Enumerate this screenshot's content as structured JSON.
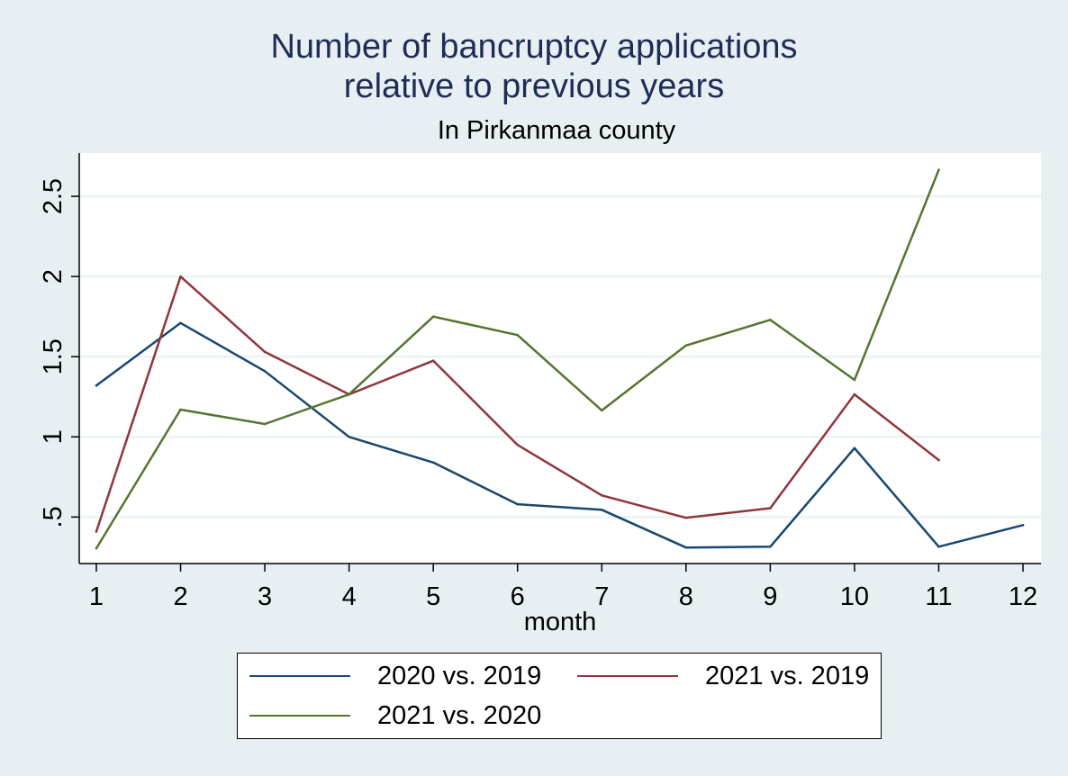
{
  "chart_data": {
    "type": "line",
    "title": [
      "Number of bancruptcy applications",
      "relative to previous years"
    ],
    "subtitle": "In Pirkanmaa county",
    "xlabel": "month",
    "ylabel": "",
    "x": [
      1,
      2,
      3,
      4,
      5,
      6,
      7,
      8,
      9,
      10,
      11,
      12
    ],
    "xlim": [
      1,
      12
    ],
    "ylim": [
      0.21,
      2.77
    ],
    "yticks": [
      0.5,
      1,
      1.5,
      2,
      2.5
    ],
    "ytick_labels": [
      ".5",
      "1",
      "1.5",
      "2",
      "2.5"
    ],
    "grid": true,
    "legend_position": "bottom",
    "series": [
      {
        "name": "2020 vs. 2019",
        "color": "#1a476f",
        "values": [
          1.32,
          1.71,
          1.41,
          1.0,
          0.84,
          0.58,
          0.545,
          0.31,
          0.315,
          0.93,
          0.315,
          0.45
        ]
      },
      {
        "name": "2021 vs. 2019",
        "color": "#90353b",
        "values": [
          0.41,
          2.0,
          1.53,
          1.265,
          1.475,
          0.95,
          0.635,
          0.495,
          0.555,
          1.265,
          0.855,
          null
        ]
      },
      {
        "name": "2021 vs. 2020",
        "color": "#55752f",
        "values": [
          0.305,
          1.17,
          1.08,
          1.265,
          1.75,
          1.635,
          1.165,
          1.57,
          1.73,
          1.355,
          2.665,
          null
        ]
      }
    ]
  }
}
